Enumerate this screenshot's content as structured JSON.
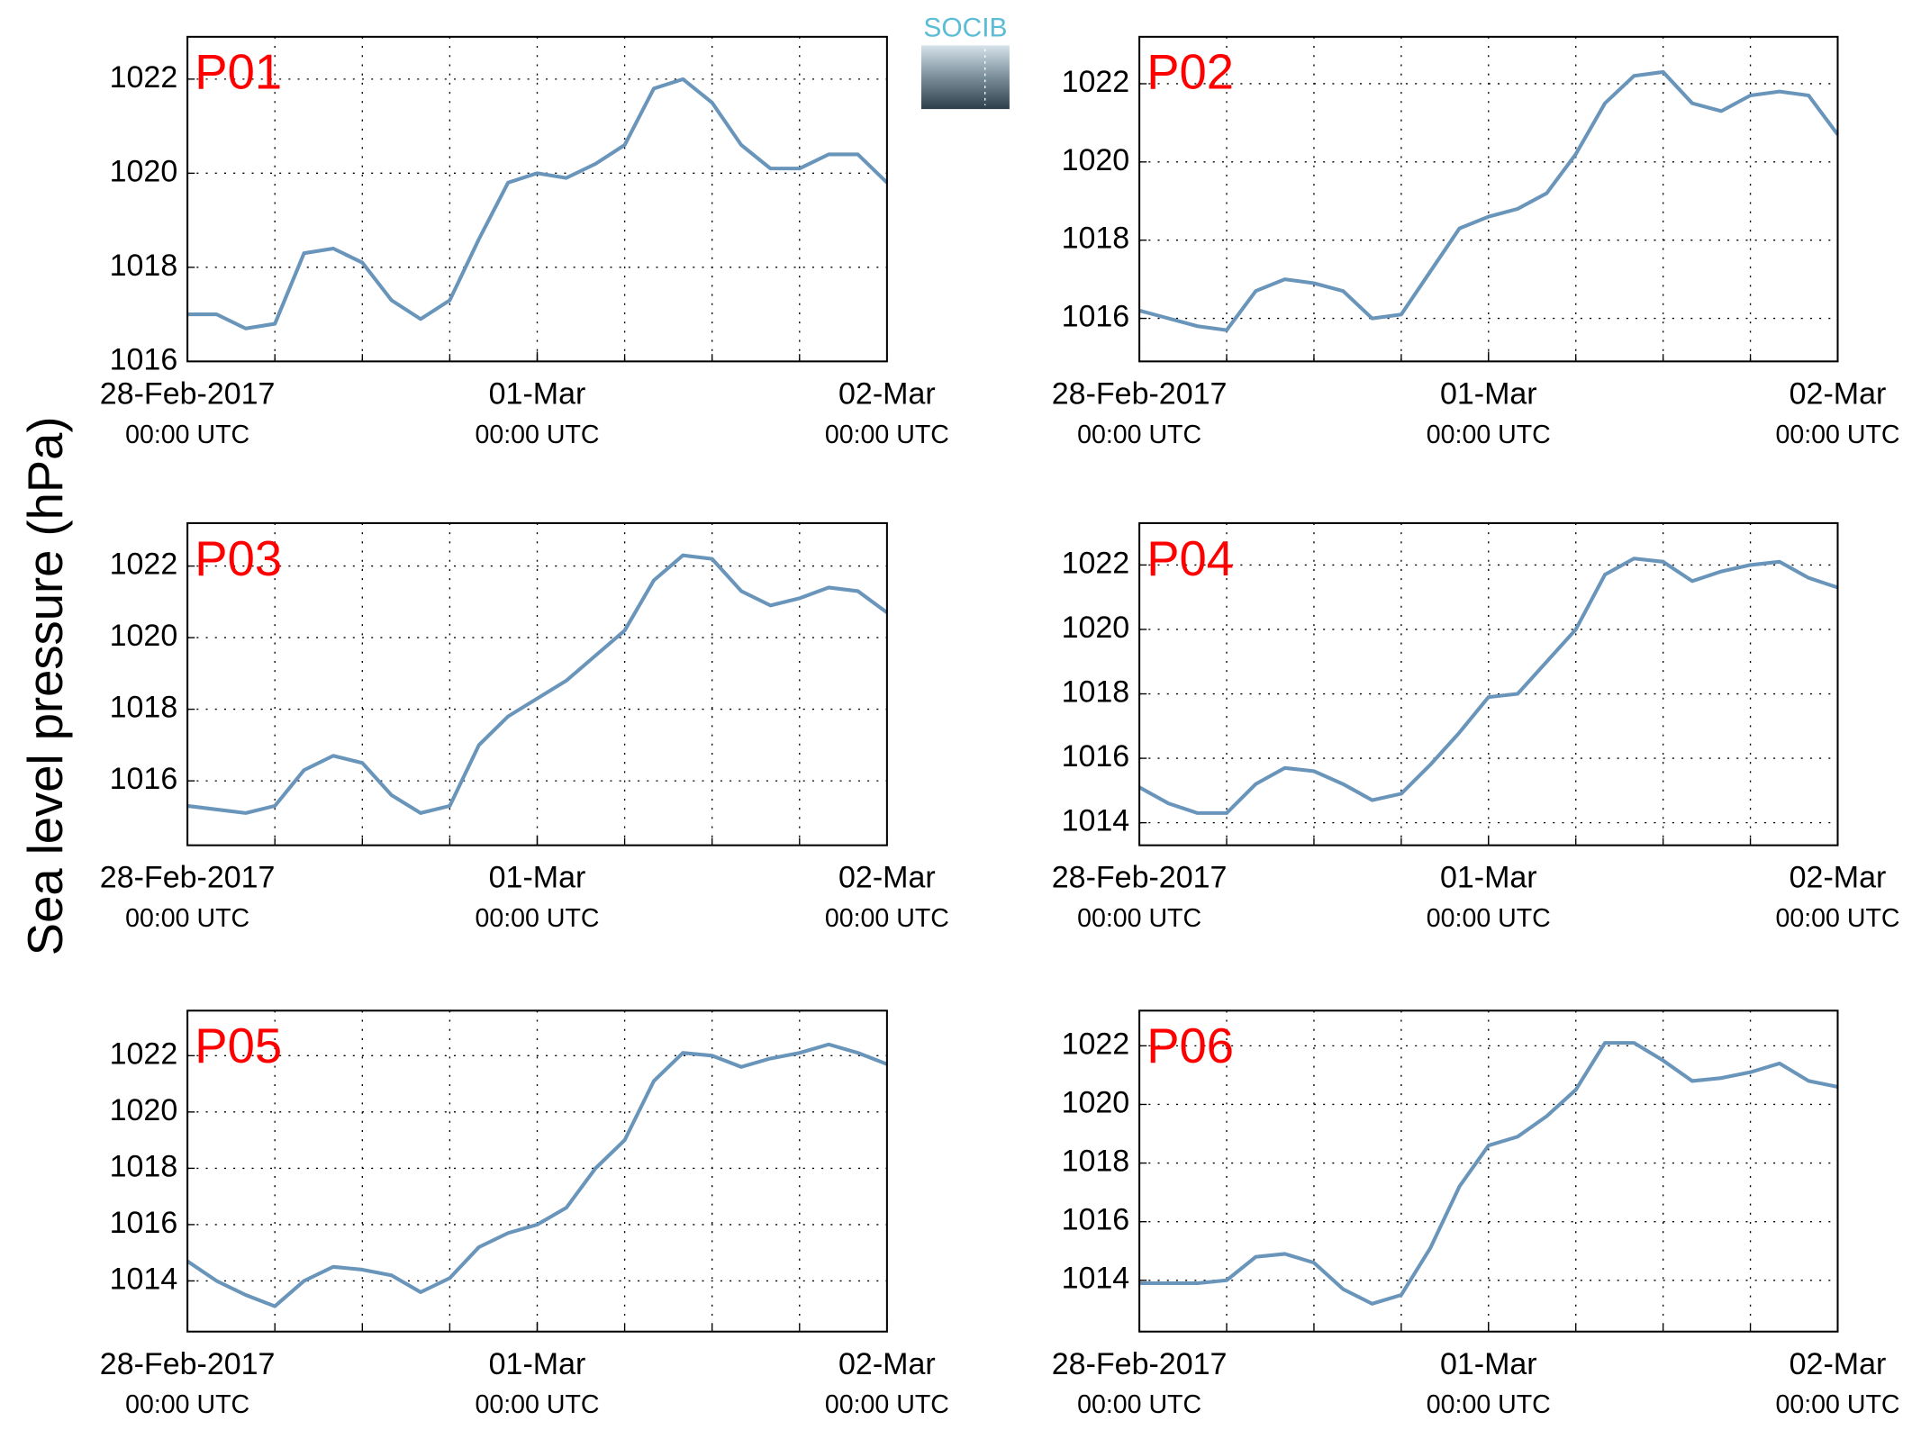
{
  "ylabel": "Sea level pressure (hPa)",
  "logo": "SOCIB",
  "chart_data": [
    {
      "type": "line",
      "title": "P01",
      "x": [
        0,
        2,
        4,
        6,
        8,
        10,
        12,
        14,
        16,
        18,
        20,
        22,
        24,
        26,
        28,
        30,
        32,
        34,
        36,
        38,
        40,
        42,
        44,
        46,
        48
      ],
      "xlim": [
        0,
        48
      ],
      "xticks": [
        {
          "value": 0,
          "label": [
            "28-Feb-2017",
            "00:00 UTC"
          ]
        },
        {
          "value": 24,
          "label": [
            "01-Mar",
            "00:00 UTC"
          ]
        },
        {
          "value": 48,
          "label": [
            "02-Mar",
            "00:00 UTC"
          ]
        }
      ],
      "xminorticks": [
        6,
        12,
        18,
        24,
        30,
        36,
        42
      ],
      "ylim": [
        1016,
        1022.9
      ],
      "yticks": [
        1016,
        1018,
        1020,
        1022
      ],
      "grid": true,
      "series": [
        {
          "color": "#6a95bb",
          "values": [
            1017.0,
            1017.0,
            1016.7,
            1016.8,
            1018.3,
            1018.4,
            1018.1,
            1017.3,
            1016.9,
            1017.3,
            1018.6,
            1019.8,
            1020.0,
            1019.9,
            1020.2,
            1020.6,
            1021.8,
            1022.0,
            1021.5,
            1020.6,
            1020.1,
            1020.1,
            1020.4,
            1020.4,
            1019.8
          ]
        }
      ]
    },
    {
      "type": "line",
      "title": "P02",
      "x": [
        0,
        2,
        4,
        6,
        8,
        10,
        12,
        14,
        16,
        18,
        20,
        22,
        24,
        26,
        28,
        30,
        32,
        34,
        36,
        38,
        40,
        42,
        44,
        46,
        48
      ],
      "xlim": [
        0,
        48
      ],
      "xticks": [
        {
          "value": 0,
          "label": [
            "28-Feb-2017",
            "00:00 UTC"
          ]
        },
        {
          "value": 24,
          "label": [
            "01-Mar",
            "00:00 UTC"
          ]
        },
        {
          "value": 48,
          "label": [
            "02-Mar",
            "00:00 UTC"
          ]
        }
      ],
      "xminorticks": [
        6,
        12,
        18,
        24,
        30,
        36,
        42
      ],
      "ylim": [
        1014.9,
        1023.2
      ],
      "yticks": [
        1016,
        1018,
        1020,
        1022
      ],
      "grid": true,
      "series": [
        {
          "color": "#6a95bb",
          "values": [
            1016.2,
            1016.0,
            1015.8,
            1015.7,
            1016.7,
            1017.0,
            1016.9,
            1016.7,
            1016.0,
            1016.1,
            1017.2,
            1018.3,
            1018.6,
            1018.8,
            1019.2,
            1020.2,
            1021.5,
            1022.2,
            1022.3,
            1021.5,
            1021.3,
            1021.7,
            1021.8,
            1021.7,
            1020.7
          ]
        }
      ]
    },
    {
      "type": "line",
      "title": "P03",
      "x": [
        0,
        2,
        4,
        6,
        8,
        10,
        12,
        14,
        16,
        18,
        20,
        22,
        24,
        26,
        28,
        30,
        32,
        34,
        36,
        38,
        40,
        42,
        44,
        46,
        48
      ],
      "xlim": [
        0,
        48
      ],
      "xticks": [
        {
          "value": 0,
          "label": [
            "28-Feb-2017",
            "00:00 UTC"
          ]
        },
        {
          "value": 24,
          "label": [
            "01-Mar",
            "00:00 UTC"
          ]
        },
        {
          "value": 48,
          "label": [
            "02-Mar",
            "00:00 UTC"
          ]
        }
      ],
      "xminorticks": [
        6,
        12,
        18,
        24,
        30,
        36,
        42
      ],
      "ylim": [
        1014.2,
        1023.2
      ],
      "yticks": [
        1016,
        1018,
        1020,
        1022
      ],
      "grid": true,
      "series": [
        {
          "color": "#6a95bb",
          "values": [
            1015.3,
            1015.2,
            1015.1,
            1015.3,
            1016.3,
            1016.7,
            1016.5,
            1015.6,
            1015.1,
            1015.3,
            1017.0,
            1017.8,
            1018.3,
            1018.8,
            1019.5,
            1020.2,
            1021.6,
            1022.3,
            1022.2,
            1021.3,
            1020.9,
            1021.1,
            1021.4,
            1021.3,
            1020.7
          ]
        }
      ]
    },
    {
      "type": "line",
      "title": "P04",
      "x": [
        0,
        2,
        4,
        6,
        8,
        10,
        12,
        14,
        16,
        18,
        20,
        22,
        24,
        26,
        28,
        30,
        32,
        34,
        36,
        38,
        40,
        42,
        44,
        46,
        48
      ],
      "xlim": [
        0,
        48
      ],
      "xticks": [
        {
          "value": 0,
          "label": [
            "28-Feb-2017",
            "00:00 UTC"
          ]
        },
        {
          "value": 24,
          "label": [
            "01-Mar",
            "00:00 UTC"
          ]
        },
        {
          "value": 48,
          "label": [
            "02-Mar",
            "00:00 UTC"
          ]
        }
      ],
      "xminorticks": [
        6,
        12,
        18,
        24,
        30,
        36,
        42
      ],
      "ylim": [
        1013.3,
        1023.3
      ],
      "yticks": [
        1014,
        1016,
        1018,
        1020,
        1022
      ],
      "grid": true,
      "series": [
        {
          "color": "#6a95bb",
          "values": [
            1015.1,
            1014.6,
            1014.3,
            1014.3,
            1015.2,
            1015.7,
            1015.6,
            1015.2,
            1014.7,
            1014.9,
            1015.8,
            1016.8,
            1017.9,
            1018.0,
            1019.0,
            1020.0,
            1021.7,
            1022.2,
            1022.1,
            1021.5,
            1021.8,
            1022.0,
            1022.1,
            1021.6,
            1021.3
          ]
        }
      ]
    },
    {
      "type": "line",
      "title": "P05",
      "x": [
        0,
        2,
        4,
        6,
        8,
        10,
        12,
        14,
        16,
        18,
        20,
        22,
        24,
        26,
        28,
        30,
        32,
        34,
        36,
        38,
        40,
        42,
        44,
        46,
        48
      ],
      "xlim": [
        0,
        48
      ],
      "xticks": [
        {
          "value": 0,
          "label": [
            "28-Feb-2017",
            "00:00 UTC"
          ]
        },
        {
          "value": 24,
          "label": [
            "01-Mar",
            "00:00 UTC"
          ]
        },
        {
          "value": 48,
          "label": [
            "02-Mar",
            "00:00 UTC"
          ]
        }
      ],
      "xminorticks": [
        6,
        12,
        18,
        24,
        30,
        36,
        42
      ],
      "ylim": [
        1012.2,
        1023.6
      ],
      "yticks": [
        1014,
        1016,
        1018,
        1020,
        1022
      ],
      "grid": true,
      "series": [
        {
          "color": "#6a95bb",
          "values": [
            1014.7,
            1014.0,
            1013.5,
            1013.1,
            1014.0,
            1014.5,
            1014.4,
            1014.2,
            1013.6,
            1014.1,
            1015.2,
            1015.7,
            1016.0,
            1016.6,
            1018.0,
            1019.0,
            1021.1,
            1022.1,
            1022.0,
            1021.6,
            1021.9,
            1022.1,
            1022.4,
            1022.1,
            1021.7
          ]
        }
      ]
    },
    {
      "type": "line",
      "title": "P06",
      "x": [
        0,
        2,
        4,
        6,
        8,
        10,
        12,
        14,
        16,
        18,
        20,
        22,
        24,
        26,
        28,
        30,
        32,
        34,
        36,
        38,
        40,
        42,
        44,
        46,
        48
      ],
      "xlim": [
        0,
        48
      ],
      "xticks": [
        {
          "value": 0,
          "label": [
            "28-Feb-2017",
            "00:00 UTC"
          ]
        },
        {
          "value": 24,
          "label": [
            "01-Mar",
            "00:00 UTC"
          ]
        },
        {
          "value": 48,
          "label": [
            "02-Mar",
            "00:00 UTC"
          ]
        }
      ],
      "xminorticks": [
        6,
        12,
        18,
        24,
        30,
        36,
        42
      ],
      "ylim": [
        1012.25,
        1023.2
      ],
      "yticks": [
        1014,
        1016,
        1018,
        1020,
        1022
      ],
      "grid": true,
      "series": [
        {
          "color": "#6a95bb",
          "values": [
            1013.9,
            1013.9,
            1013.9,
            1014.0,
            1014.8,
            1014.9,
            1014.6,
            1013.7,
            1013.2,
            1013.5,
            1015.1,
            1017.2,
            1018.6,
            1018.9,
            1019.6,
            1020.5,
            1022.1,
            1022.1,
            1021.5,
            1020.8,
            1020.9,
            1021.1,
            1021.4,
            1020.8,
            1020.6
          ]
        }
      ]
    }
  ]
}
